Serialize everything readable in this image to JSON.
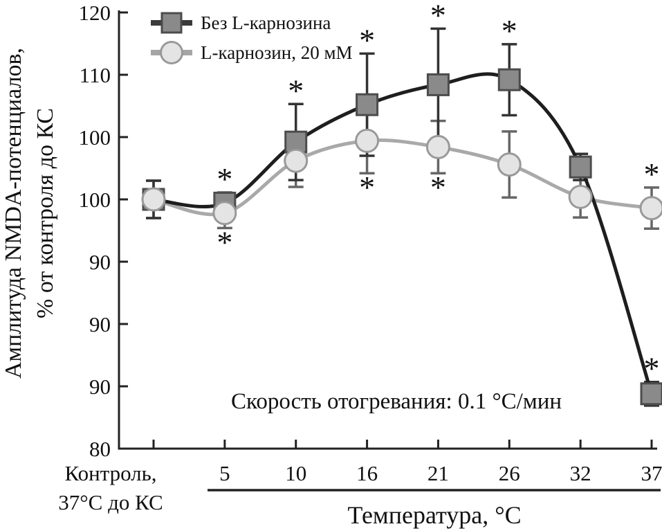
{
  "figure": {
    "y_axis": {
      "title_line1": "Амплитуда NMDA-потенциалов,",
      "title_line2": "% от контроля до КС",
      "tick_labels_top_to_bottom": [
        "120",
        "110",
        "100",
        "100",
        "90",
        "90",
        "90",
        "80"
      ]
    },
    "x_axis": {
      "title": "Температура, °C",
      "control_label_line1": "Контроль,",
      "control_label_line2": "37°С до КС",
      "temperature_tick_labels": [
        "5",
        "10",
        "16",
        "21",
        "26",
        "32",
        "37"
      ]
    },
    "legend": [
      {
        "label": "Без L-карнозина",
        "marker": "square"
      },
      {
        "label": "L-карнозин, 20 мМ",
        "marker": "circle"
      }
    ],
    "annotation": "Скорость отогревания: 0.1 °C/мин"
  },
  "colors": {
    "series1_line": "#1e1e1e",
    "series1_marker_fill": "#8a8a8a",
    "series1_marker_stroke": "#4c4c4c",
    "series1_error": "#333333",
    "series2_line": "#a9a9a9",
    "series2_marker_fill": "#e4e4e4",
    "series2_marker_stroke": "#999999",
    "series2_error": "#666666",
    "axis": "#222222",
    "text": "#111111"
  },
  "chart_data": {
    "type": "line",
    "title": "",
    "xlabel": "Температура, °C",
    "ylabel": "Амплитуда NMDA-потенциалов, % от контроля до КС",
    "annotation": "Скорость отогревания: 0.1 °C/мин",
    "legend_position": "top-left-inside",
    "grid": false,
    "categories": [
      "Контроль, 37°С до КС",
      "5",
      "10",
      "16",
      "21",
      "26",
      "32",
      "37"
    ],
    "y_tick_labels_top_to_bottom": [
      "120",
      "110",
      "100",
      "100",
      "90",
      "90",
      "90",
      "80"
    ],
    "ylim_plot_scale": [
      80,
      115
    ],
    "y_units_per_tick": 5,
    "series": [
      {
        "name": "Без L-карнозина",
        "marker": "square",
        "values": [
          100,
          99.7,
          104.6,
          107.6,
          109.2,
          109.6,
          102.6,
          84.4
        ],
        "errors": [
          1.5,
          0.85,
          3.05,
          4.1,
          4.5,
          2.85,
          1.05,
          0.95
        ],
        "significant": [
          false,
          true,
          true,
          true,
          true,
          true,
          false,
          true
        ],
        "asterisk_side": [
          "",
          "above",
          "above",
          "above",
          "above",
          "above",
          "",
          "above"
        ]
      },
      {
        "name": "L-карнозин, 20 мМ",
        "marker": "circle",
        "values": [
          100,
          98.9,
          103.1,
          104.7,
          104.2,
          102.8,
          100.2,
          99.3
        ],
        "errors": [
          1.5,
          1.2,
          2.1,
          2.6,
          2.1,
          2.65,
          1.65,
          1.65
        ],
        "significant": [
          false,
          true,
          false,
          true,
          true,
          false,
          false,
          true
        ],
        "asterisk_side": [
          "",
          "below",
          "",
          "below",
          "below",
          "",
          "",
          "above"
        ]
      }
    ]
  }
}
